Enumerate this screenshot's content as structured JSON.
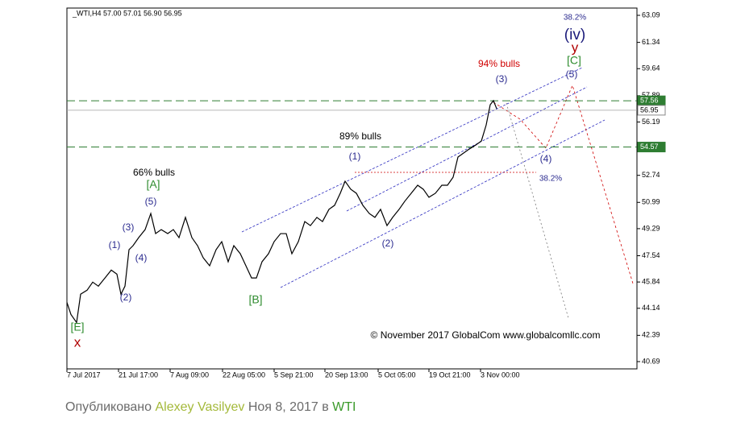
{
  "chart_data": {
    "type": "line",
    "header": "_WTI,H4  57.00 57.01 56.90 56.95",
    "color": "#000000",
    "x": [
      0,
      5,
      12,
      17,
      25,
      32,
      39,
      47,
      55,
      62,
      67,
      72,
      77,
      82,
      89,
      97,
      104,
      110,
      117,
      125,
      132,
      139,
      147,
      155,
      162,
      169,
      177,
      185,
      192,
      200,
      207,
      215,
      222,
      229,
      235,
      242,
      250,
      257,
      265,
      272,
      279,
      287,
      295,
      302,
      310,
      317,
      325,
      332,
      339,
      345,
      352,
      359,
      367,
      375,
      382,
      389,
      397,
      404,
      412,
      419,
      427,
      435,
      442,
      449,
      457,
      465,
      472,
      479,
      485,
      492,
      499,
      507,
      514,
      520,
      525,
      529,
      533
    ],
    "values": [
      44.52,
      43.74,
      43.22,
      45.05,
      45.31,
      45.83,
      45.57,
      46.09,
      46.61,
      46.35,
      45.05,
      45.57,
      47.93,
      48.19,
      48.71,
      49.23,
      50.27,
      48.97,
      49.23,
      48.97,
      49.23,
      48.71,
      50.02,
      48.71,
      48.19,
      47.41,
      46.89,
      47.93,
      48.45,
      47.15,
      48.19,
      47.67,
      46.89,
      46.1,
      46.1,
      47.15,
      47.67,
      48.45,
      48.97,
      48.97,
      47.67,
      48.45,
      49.75,
      49.49,
      50.02,
      49.75,
      50.54,
      50.8,
      51.58,
      52.36,
      51.84,
      51.58,
      50.8,
      50.27,
      50.02,
      50.54,
      49.49,
      50.02,
      50.54,
      51.06,
      51.58,
      52.1,
      51.84,
      51.32,
      51.58,
      52.1,
      52.1,
      52.62,
      53.92,
      54.18,
      54.44,
      54.7,
      54.96,
      56.0,
      57.31,
      57.57,
      57.05
    ],
    "xlim": [
      0,
      707
    ],
    "xticks": [
      {
        "value": 0,
        "label": "7 Jul 2017"
      },
      {
        "value": 64,
        "label": "21 Jul 17:00"
      },
      {
        "value": 128,
        "label": "7 Aug 09:00"
      },
      {
        "value": 193,
        "label": "22 Aug 05:00"
      },
      {
        "value": 257,
        "label": "5 Sep 21:00"
      },
      {
        "value": 320,
        "label": "20 Sep 13:00"
      },
      {
        "value": 386,
        "label": "5 Oct 05:00"
      },
      {
        "value": 449,
        "label": "19 Oct 21:00"
      },
      {
        "value": 513,
        "label": "3 Nov 00:00"
      }
    ],
    "ylim": [
      40.22,
      63.56
    ],
    "yticks": [
      63.09,
      61.34,
      59.64,
      57.89,
      56.19,
      52.74,
      50.99,
      49.29,
      47.54,
      45.84,
      44.14,
      42.39,
      40.69
    ],
    "price_lines": [
      {
        "value": 57.56,
        "color": "#2e7d32",
        "dashed": true
      },
      {
        "value": 56.95,
        "color": "#a0a0a0",
        "dashed": false
      },
      {
        "value": 54.57,
        "color": "#2e7d32",
        "dashed": true
      }
    ],
    "annotations": [
      {
        "text": "38.2%",
        "color": "#2b2b8f"
      },
      {
        "text": "(iv)",
        "color": "#1a1a7a"
      },
      {
        "text": "y",
        "color": "#b00000"
      },
      {
        "text": "[C]",
        "color": "#2e8b2e"
      },
      {
        "text": "94% bulls",
        "color": "#d00000"
      },
      {
        "text": "(3)",
        "color": "#2b2b8f"
      },
      {
        "text": "(5)",
        "color": "#2b2b8f"
      },
      {
        "text": "89% bulls",
        "color": "#000000"
      },
      {
        "text": "(1)",
        "color": "#2b2b8f"
      },
      {
        "text": "(4)",
        "color": "#2b2b8f"
      },
      {
        "text": "38.2%",
        "color": "#2b2b8f"
      },
      {
        "text": "66% bulls",
        "color": "#000000"
      },
      {
        "text": "[A]",
        "color": "#2e8b2e"
      },
      {
        "text": "(5)",
        "color": "#2b2b8f"
      },
      {
        "text": "(3)",
        "color": "#2b2b8f"
      },
      {
        "text": "(1)",
        "color": "#2b2b8f"
      },
      {
        "text": "(4)",
        "color": "#2b2b8f"
      },
      {
        "text": "(2)",
        "color": "#2b2b8f"
      },
      {
        "text": "(2)",
        "color": "#2b2b8f"
      },
      {
        "text": "[B]",
        "color": "#2e8b2e"
      },
      {
        "text": "[E]",
        "color": "#2e8b2e"
      },
      {
        "text": "x",
        "color": "#b00000"
      },
      {
        "text": "© November 2017 GlobalCom www.globalcomllc.com",
        "color": "#000000"
      }
    ]
  },
  "caption": [
    "Опубликовано",
    "Alexey Vasilyev",
    "Ноя 8, 2017 в",
    "WTI"
  ]
}
